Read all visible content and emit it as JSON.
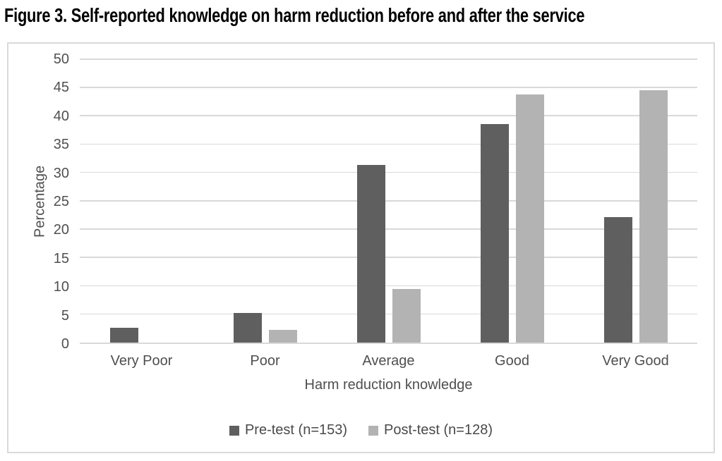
{
  "figure_title": "Figure 3. Self-reported knowledge on harm reduction before and after the service",
  "chart_data": {
    "type": "bar",
    "title": "Figure 3. Self-reported knowledge on harm reduction before and after the service",
    "categories": [
      "Very Poor",
      "Poor",
      "Average",
      "Good",
      "Very Good"
    ],
    "series": [
      {
        "name": "Pre-test (n=153)",
        "color": "#5f5f5f",
        "values": [
          2.6,
          5.2,
          31.4,
          38.6,
          22.2
        ]
      },
      {
        "name": "Post-test (n=128)",
        "color": "#b3b3b3",
        "values": [
          0,
          2.3,
          9.4,
          43.8,
          44.5
        ]
      }
    ],
    "xlabel": "Harm reduction knowledge",
    "ylabel": "Percentage",
    "ylim": [
      0,
      50
    ],
    "ytick_step": 5,
    "yticks": [
      0,
      5,
      10,
      15,
      20,
      25,
      30,
      35,
      40,
      45,
      50
    ],
    "grid": true,
    "legend_position": "bottom",
    "colors": {
      "gridline": "#d9d9d9",
      "frame_border": "#d9d9d9",
      "axis_text": "#4f4f4f",
      "title_text": "#000000"
    }
  }
}
